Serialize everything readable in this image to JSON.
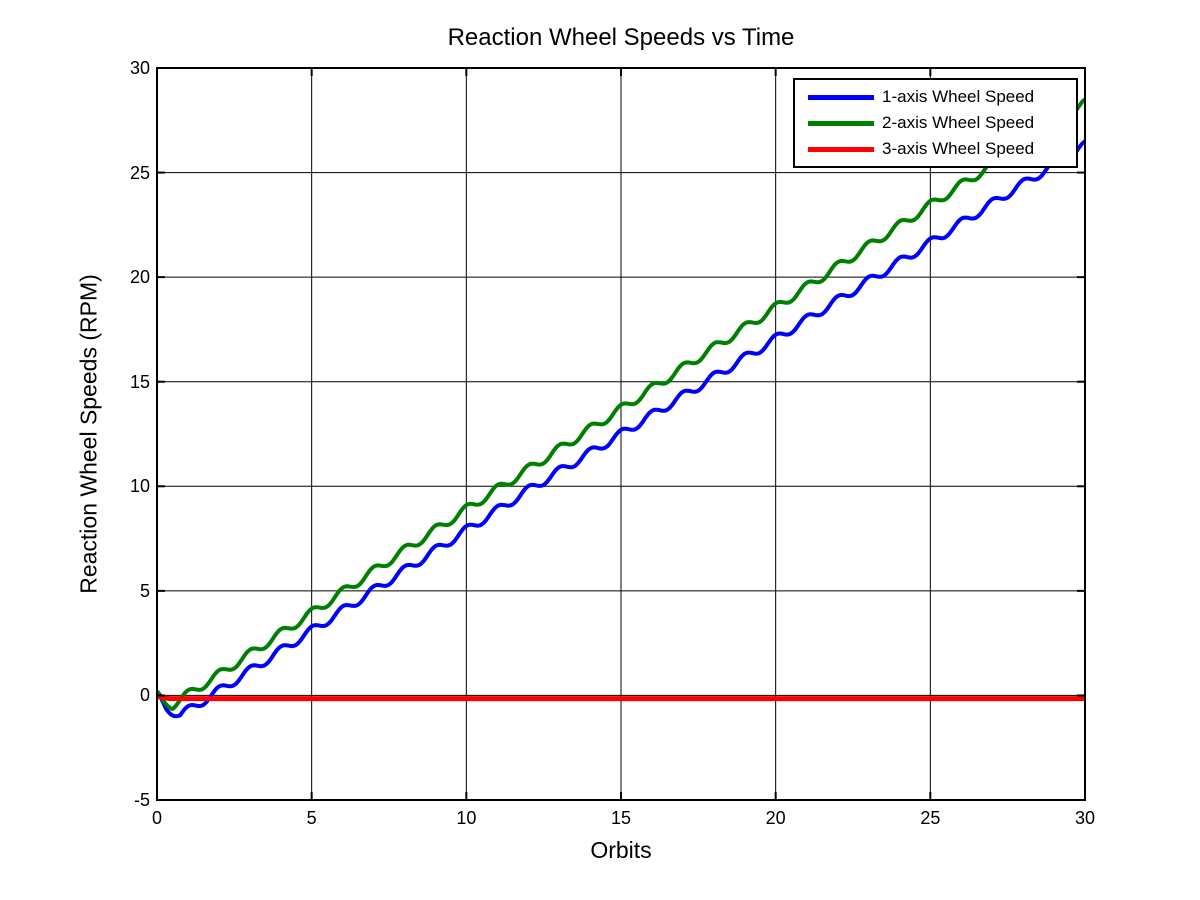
{
  "chart_data": {
    "type": "line",
    "title": "Reaction Wheel Speeds vs Time",
    "xlabel": "Orbits",
    "ylabel": "Reaction Wheel Speeds (RPM)",
    "xlim": [
      0,
      30
    ],
    "ylim": [
      -5,
      30
    ],
    "xticks": [
      0,
      5,
      10,
      15,
      20,
      25,
      30
    ],
    "yticks": [
      -5,
      0,
      5,
      10,
      15,
      20,
      25,
      30
    ],
    "grid": true,
    "grid_style": "solid",
    "grid_color": "#000000",
    "axes_color": "#000000",
    "background_color": "#ffffff",
    "legend": {
      "position": "top-right",
      "border_color": "#000000",
      "items": [
        {
          "label": "1-axis Wheel Speed",
          "color": "#0000ff"
        },
        {
          "label": "2-axis Wheel Speed",
          "color": "#008000"
        },
        {
          "label": "3-axis Wheel Speed",
          "color": "#ff0000"
        }
      ]
    },
    "series": [
      {
        "name": "1-axis Wheel Speed",
        "color": "#0000ff",
        "line_width": 4,
        "trend_keypoints_x": [
          0,
          0.3,
          0.75,
          1.5,
          2.5,
          5,
          7.5,
          10,
          12.2,
          15,
          17.75,
          20,
          22.5,
          25,
          27.5,
          30
        ],
        "trend_keypoints_y": [
          0,
          -0.6,
          -0.95,
          -0.25,
          0.7,
          3.1,
          5.5,
          7.9,
          10,
          12.5,
          15,
          17.05,
          19.35,
          21.65,
          24.0,
          26.3
        ],
        "oscillation": {
          "amplitude": 0.2,
          "period_orbits": 1,
          "phase": 1.57
        }
      },
      {
        "name": "2-axis Wheel Speed",
        "color": "#008000",
        "line_width": 4,
        "trend_keypoints_x": [
          0,
          0.25,
          0.5,
          1,
          2,
          5,
          7.5,
          10,
          12.5,
          15,
          17.5,
          20,
          22.5,
          25,
          27.5,
          30
        ],
        "trend_keypoints_y": [
          0,
          -0.35,
          -0.45,
          0.05,
          1.0,
          3.95,
          6.45,
          8.9,
          11.3,
          13.7,
          16.15,
          18.55,
          21.0,
          23.45,
          25.85,
          28.3
        ],
        "oscillation": {
          "amplitude": 0.2,
          "period_orbits": 1,
          "phase": 1.57
        }
      },
      {
        "name": "3-axis Wheel Speed",
        "color": "#ff0000",
        "line_width": 5,
        "trend_keypoints_x": [
          0,
          0.4,
          30
        ],
        "trend_keypoints_y": [
          -0.05,
          -0.15,
          -0.15
        ],
        "oscillation": {
          "amplitude": 0,
          "period_orbits": 1,
          "phase": 0
        }
      }
    ]
  }
}
